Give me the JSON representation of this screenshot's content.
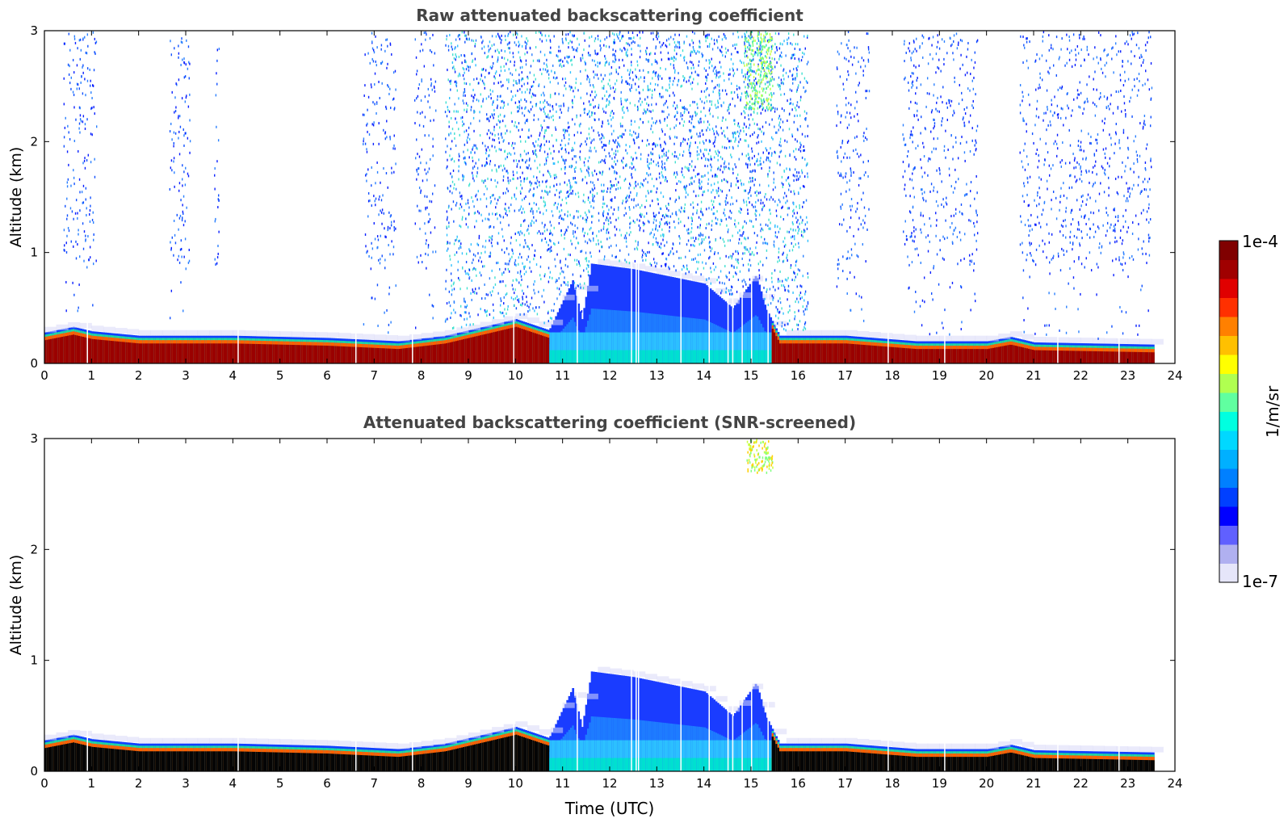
{
  "chart_data": [
    {
      "type": "heatmap",
      "title": "Raw attenuated backscattering coefficient",
      "xlabel": "",
      "ylabel": "Altitude (km)",
      "xlim": [
        0,
        24
      ],
      "ylim": [
        0,
        3
      ],
      "x_ticks": [
        "0",
        "1",
        "2",
        "3",
        "4",
        "5",
        "6",
        "7",
        "8",
        "9",
        "10",
        "11",
        "12",
        "13",
        "14",
        "15",
        "16",
        "17",
        "18",
        "19",
        "20",
        "21",
        "22",
        "23",
        "24"
      ],
      "y_ticks": [
        "0",
        "1",
        "2",
        "3"
      ],
      "data_end_time": 23.55,
      "surface_layer_top": [
        [
          0,
          0.28
        ],
        [
          0.6,
          0.33
        ],
        [
          1,
          0.29
        ],
        [
          2,
          0.25
        ],
        [
          4,
          0.25
        ],
        [
          6,
          0.23
        ],
        [
          7.5,
          0.2
        ],
        [
          8.5,
          0.25
        ],
        [
          9.5,
          0.35
        ],
        [
          10,
          0.4
        ],
        [
          10.7,
          0.3
        ],
        [
          11.2,
          0.75
        ],
        [
          11.4,
          0.4
        ],
        [
          11.6,
          0.9
        ],
        [
          12.5,
          0.85
        ],
        [
          14,
          0.72
        ],
        [
          14.6,
          0.5
        ],
        [
          15.1,
          0.8
        ],
        [
          15.3,
          0.5
        ],
        [
          15.6,
          0.25
        ],
        [
          17,
          0.25
        ],
        [
          18.5,
          0.2
        ],
        [
          20,
          0.2
        ],
        [
          20.5,
          0.24
        ],
        [
          21,
          0.19
        ],
        [
          23.55,
          0.17
        ]
      ],
      "clutter_bands": [
        [
          0.4,
          1.1
        ],
        [
          2.65,
          3.1
        ],
        [
          3.6,
          3.7
        ],
        [
          6.75,
          7.45
        ],
        [
          7.85,
          8.3
        ],
        [
          8.5,
          16.2
        ],
        [
          16.8,
          17.5
        ],
        [
          18.2,
          19.8
        ],
        [
          20.7,
          23.5
        ]
      ]
    },
    {
      "type": "heatmap",
      "title": "Attenuated backscattering coefficient (SNR-screened)",
      "xlabel": "Time (UTC)",
      "ylabel": "Altitude (km)",
      "xlim": [
        0,
        24
      ],
      "ylim": [
        0,
        3
      ],
      "x_ticks": [
        "0",
        "1",
        "2",
        "3",
        "4",
        "5",
        "6",
        "7",
        "8",
        "9",
        "10",
        "11",
        "12",
        "13",
        "14",
        "15",
        "16",
        "17",
        "18",
        "19",
        "20",
        "21",
        "22",
        "23",
        "24"
      ],
      "y_ticks": [
        "0",
        "1",
        "2",
        "3"
      ],
      "data_end_time": 23.55,
      "high_cloud": {
        "time_range": [
          14.9,
          15.45
        ],
        "altitude_range": [
          2.7,
          3.0
        ]
      }
    }
  ],
  "colorbar": {
    "label": "1/m/sr",
    "max_label": "1e-4",
    "min_label": "1e-7",
    "colors": [
      "#e6e6fa",
      "#b0b0f0",
      "#6060ff",
      "#0000ff",
      "#0040ff",
      "#0080ff",
      "#00b0ff",
      "#00d8ff",
      "#00ffe0",
      "#60ffa0",
      "#b0ff50",
      "#ffff00",
      "#ffc000",
      "#ff8000",
      "#ff3000",
      "#e00000",
      "#a00000",
      "#800000"
    ]
  }
}
